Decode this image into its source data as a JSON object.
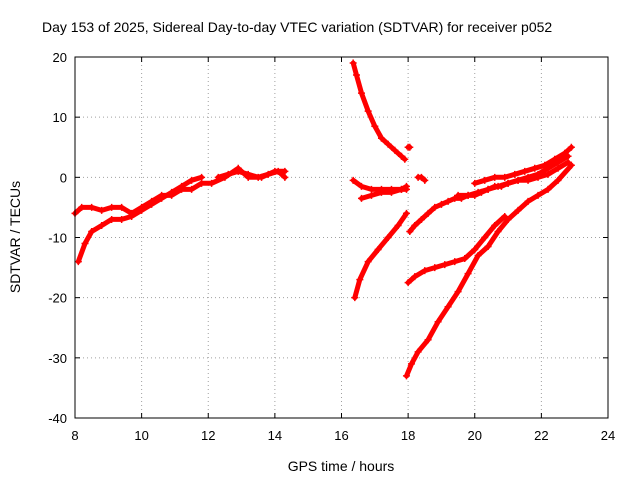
{
  "chart_data": {
    "type": "scatter",
    "title": "Day 153 of 2025, Sidereal Day-to-day VTEC variation (SDTVAR) for receiver p052",
    "xlabel": "GPS time / hours",
    "ylabel": "SDTVAR / TECUs",
    "xlim": [
      8,
      24
    ],
    "ylim": [
      -40,
      20
    ],
    "xticks": [
      8,
      10,
      12,
      14,
      16,
      18,
      20,
      22,
      24
    ],
    "yticks": [
      -40,
      -30,
      -20,
      -10,
      0,
      10,
      20
    ],
    "grid": true,
    "marker": "plus",
    "color": "#ff0000",
    "series": [
      {
        "x": [
          8.0,
          8.2,
          8.5,
          8.8,
          9.1,
          9.4,
          9.7,
          10.0,
          10.3,
          10.6,
          10.9,
          11.2,
          11.5,
          11.8,
          12.1,
          12.5,
          12.9,
          13.2,
          13.6,
          14.0,
          14.3
        ],
        "y": [
          -6,
          -5,
          -5,
          -5.5,
          -5,
          -5,
          -6,
          -5,
          -4,
          -3,
          -3,
          -2,
          -2,
          -1,
          -1,
          0,
          1.5,
          0,
          0,
          1,
          1
        ]
      },
      {
        "x": [
          8.1,
          8.3,
          8.5,
          8.8,
          9.1,
          9.4,
          9.7,
          10.0,
          10.3,
          10.6,
          10.9,
          11.2,
          11.5,
          11.8
        ],
        "y": [
          -14,
          -11,
          -9,
          -8,
          -7,
          -7,
          -6.5,
          -5.5,
          -4.5,
          -3.5,
          -2.5,
          -1.5,
          -0.5,
          0
        ]
      },
      {
        "x": [
          12.3,
          12.6,
          12.9,
          13.2,
          13.5,
          13.8,
          14.1,
          14.3
        ],
        "y": [
          0,
          0.5,
          1,
          0.5,
          0,
          0.5,
          1,
          0
        ]
      },
      {
        "x": [
          16.35,
          16.45,
          16.6,
          16.8,
          17.0,
          17.2,
          17.4,
          17.6,
          17.8,
          17.9
        ],
        "y": [
          19,
          17,
          14,
          11,
          8.5,
          6.5,
          5.5,
          4.5,
          3.5,
          3
        ]
      },
      {
        "x": [
          16.4,
          16.55,
          16.8,
          17.1,
          17.4,
          17.7,
          17.95
        ],
        "y": [
          -20,
          -17,
          -14,
          -12,
          -10,
          -8,
          -6
        ]
      },
      {
        "x": [
          16.35,
          16.6,
          16.9,
          17.2,
          17.5,
          17.8,
          17.95
        ],
        "y": [
          -0.5,
          -1.5,
          -2,
          -2,
          -2,
          -2,
          -1.5
        ]
      },
      {
        "x": [
          16.6,
          16.9,
          17.2,
          17.5,
          17.8,
          17.95
        ],
        "y": [
          -3.5,
          -3,
          -2.5,
          -2.5,
          -2,
          -2
        ]
      },
      {
        "x": [
          18.0,
          18.05
        ],
        "y": [
          5,
          5
        ]
      },
      {
        "x": [
          18.3,
          18.4,
          18.5
        ],
        "y": [
          0,
          0,
          -0.5
        ]
      },
      {
        "x": [
          17.95,
          18.1,
          18.3,
          18.6,
          18.9,
          19.2,
          19.5,
          19.8,
          20.1,
          20.4,
          20.7,
          21.0,
          21.3,
          21.6,
          21.9,
          22.2,
          22.5,
          22.9
        ],
        "y": [
          -33,
          -31,
          -29,
          -27,
          -24,
          -21.5,
          -19,
          -16,
          -13,
          -11.5,
          -9,
          -7,
          -5.5,
          -4,
          -3,
          -2,
          -0.5,
          2
        ]
      },
      {
        "x": [
          18.0,
          18.2,
          18.5,
          18.8,
          19.1,
          19.4,
          19.7,
          20.0,
          20.3,
          20.6,
          20.9
        ],
        "y": [
          -17.5,
          -16.5,
          -15.5,
          -15,
          -14.5,
          -14,
          -13.5,
          -12,
          -10,
          -8,
          -6.5
        ]
      },
      {
        "x": [
          18.05,
          18.2,
          18.4,
          18.6,
          18.8,
          19.0,
          19.2,
          19.4,
          19.6,
          19.8,
          20.0,
          20.2,
          20.4,
          20.6,
          20.8,
          21.0,
          21.3,
          21.6,
          21.9,
          22.2,
          22.5,
          22.8
        ],
        "y": [
          -9,
          -8,
          -7,
          -6,
          -5,
          -4.5,
          -4,
          -3.5,
          -3.5,
          -3,
          -3,
          -2.5,
          -2,
          -1.5,
          -1.5,
          -1,
          -0.5,
          -0.5,
          0,
          0.5,
          1.5,
          2.5
        ]
      },
      {
        "x": [
          20.0,
          20.3,
          20.6,
          20.9,
          21.2,
          21.5,
          21.8,
          22.1,
          22.4,
          22.7,
          22.9
        ],
        "y": [
          -1,
          -0.5,
          0,
          0,
          0.5,
          1,
          1.5,
          2,
          3,
          4,
          5
        ]
      },
      {
        "x": [
          19.5,
          19.8,
          20.1,
          20.4,
          20.7,
          21.0,
          21.3,
          21.6,
          21.9,
          22.2,
          22.5,
          22.8
        ],
        "y": [
          -3,
          -3,
          -2.5,
          -2,
          -1.5,
          -1,
          -0.5,
          0,
          0.5,
          1.5,
          2.5,
          3.5
        ]
      }
    ]
  }
}
